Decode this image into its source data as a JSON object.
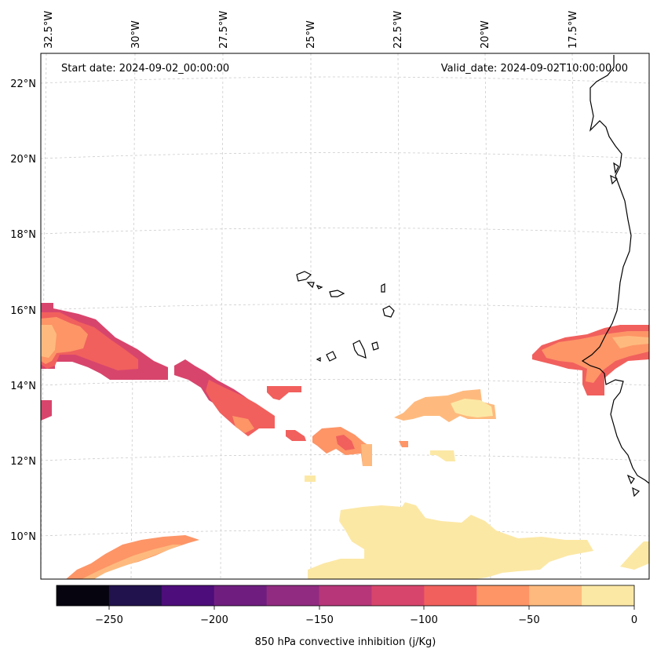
{
  "map": {
    "start_label": "Start date: 2024-09-02_00:00:00",
    "valid_label": "Valid_date: 2024-09-02T10:00:00.00",
    "longitude_labels": [
      "32.5°W",
      "30°W",
      "27.5°W",
      "25°W",
      "22.5°W",
      "20°W",
      "17.5°W"
    ],
    "latitude_labels": [
      "22°N",
      "20°N",
      "18°N",
      "16°N",
      "14°N",
      "12°N",
      "10°N"
    ],
    "coastline_color": "#000000",
    "gridline_color": "#cccccc"
  },
  "colorbar": {
    "label": "850 hPa convective inhibition (j/Kg)",
    "tick_labels": [
      "−250",
      "−200",
      "−150",
      "−100",
      "−50",
      "0"
    ],
    "levels": [
      -275,
      -250,
      -225,
      -200,
      -175,
      -150,
      -125,
      -100,
      -75,
      -50,
      -25,
      0
    ],
    "colors": [
      "#05040f",
      "#21114c",
      "#4d0d7a",
      "#6f1e80",
      "#912b81",
      "#b63679",
      "#d8456c",
      "#f1605d",
      "#fd9567",
      "#feba7e",
      "#fce8a5"
    ]
  }
}
